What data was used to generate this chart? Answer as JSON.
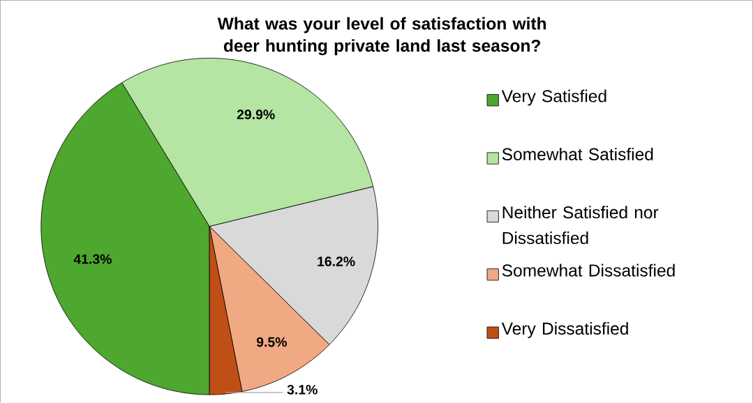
{
  "chart_data": {
    "type": "pie",
    "title": "What was your level of satisfaction with deer hunting private land last season?",
    "categories": [
      "Very Satisfied",
      "Somewhat Satisfied",
      "Neither Satisfied nor Dissatisfied",
      "Somewhat Dissatisfied",
      "Very Dissatisfied"
    ],
    "values": [
      41.3,
      29.9,
      16.2,
      9.5,
      3.1
    ],
    "colors": [
      "#4ea72e",
      "#b4e5a2",
      "#d9d9d9",
      "#f1a983",
      "#c04f15"
    ],
    "value_labels": [
      "41.3%",
      "29.9%",
      "16.2%",
      "9.5%",
      "3.1%"
    ],
    "legend": "right"
  }
}
